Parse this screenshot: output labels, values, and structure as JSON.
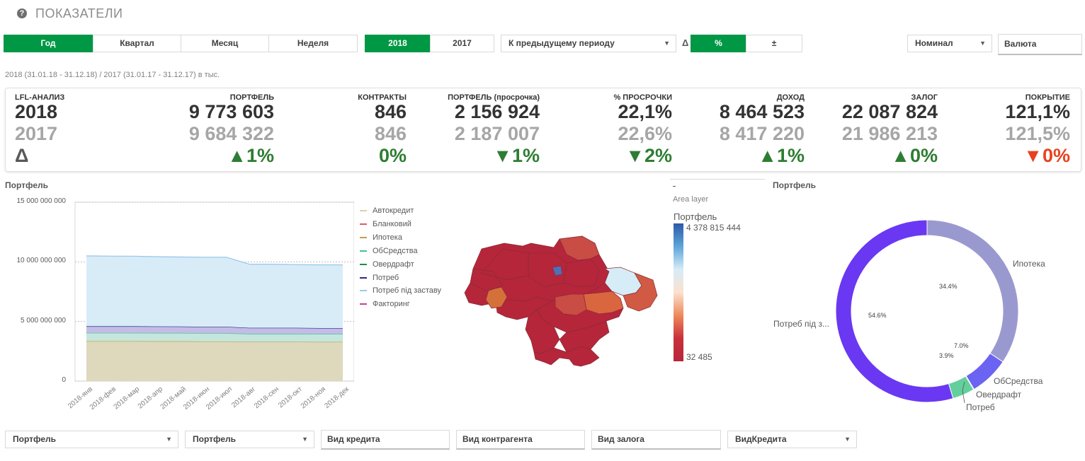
{
  "header": {
    "title": "ПОКАЗАТЕЛИ",
    "help_icon": "question-circle-icon"
  },
  "toolbar": {
    "period_tabs": [
      {
        "label": "Год",
        "selected": true
      },
      {
        "label": "Квартал",
        "selected": false
      },
      {
        "label": "Месяц",
        "selected": false
      },
      {
        "label": "Неделя",
        "selected": false
      }
    ],
    "years": [
      {
        "label": "2018",
        "selected": true
      },
      {
        "label": "2017",
        "selected": false
      }
    ],
    "comparison_dropdown": "К предыдущему периоду",
    "delta_symbol": "Δ",
    "delta_modes": [
      {
        "label": "%",
        "selected": true
      },
      {
        "label": "±",
        "selected": false
      }
    ],
    "nominal_dropdown": "Номинал",
    "currency_field": "Валюта"
  },
  "period_note": "2018 (31.01.18 - 31.12.18) / 2017 (31.01.17 - 31.12.17) в тыс.",
  "kpis": {
    "row_labels": {
      "header": "LFL-АНАЛИЗ",
      "current": "2018",
      "previous": "2017",
      "delta": "Δ"
    },
    "columns": [
      {
        "header": "ПОРТФЕЛЬ",
        "current": "9 773 603",
        "previous": "9 684 322",
        "delta": "▲1%",
        "negative": false
      },
      {
        "header": "КОНТРАКТЫ",
        "current": "846",
        "previous": "846",
        "delta": "0%",
        "negative": false
      },
      {
        "header": "ПОРТФЕЛЬ (просрочка)",
        "current": "2 156 924",
        "previous": "2 187 007",
        "delta": "▼1%",
        "negative": false
      },
      {
        "header": "% ПРОСРОЧКИ",
        "current": "22,1%",
        "previous": "22,6%",
        "delta": "▼2%",
        "negative": false
      },
      {
        "header": "ДОХОД",
        "current": "8 464 523",
        "previous": "8 417 220",
        "delta": "▲1%",
        "negative": false
      },
      {
        "header": "ЗАЛОГ",
        "current": "22 087 824",
        "previous": "21 986 213",
        "delta": "▲0%",
        "negative": false
      },
      {
        "header": "ПОКРЫТИЕ",
        "current": "121,1%",
        "previous": "121,5%",
        "delta": "▼0%",
        "negative": true
      }
    ],
    "colors": {
      "positive": "#2e7d32",
      "negative": "#e8421e",
      "previous": "#a6a6a6"
    }
  },
  "area_chart_title": "Портфель",
  "donut_title": "Портфель",
  "map": {
    "layer_label": "Area layer",
    "legend_title": "Портфель",
    "max_label": "4 378 815 444",
    "min_label": "32 485"
  },
  "chart_data": [
    {
      "type": "area",
      "title": "Портфель",
      "stacked": true,
      "x": [
        "2018-янв",
        "2018-фев",
        "2018-мар",
        "2018-апр",
        "2018-май",
        "2018-июн",
        "2018-июл",
        "2018-авг",
        "2018-сен",
        "2018-окт",
        "2018-ноя",
        "2018-дек"
      ],
      "yticks": [
        "0",
        "5 000 000 000",
        "10 000 000 000",
        "15 000 000 000"
      ],
      "ylim": [
        0,
        15000000000
      ],
      "series": [
        {
          "name": "Автокредит",
          "color": "#d9d3a8",
          "values": [
            0,
            0,
            0,
            0,
            0,
            0,
            0,
            0,
            0,
            0,
            0,
            0
          ]
        },
        {
          "name": "Бланковий",
          "color": "#e05a6b",
          "values": [
            0,
            0,
            0,
            0,
            0,
            0,
            0,
            0,
            0,
            0,
            0,
            0
          ]
        },
        {
          "name": "Ипотека",
          "color": "#b8a34a",
          "fill": "#ded9bd",
          "values": [
            3350000000,
            3350000000,
            3350000000,
            3340000000,
            3340000000,
            3330000000,
            3330000000,
            3300000000,
            3300000000,
            3300000000,
            3290000000,
            3290000000
          ]
        },
        {
          "name": "ОбСредства",
          "color": "#3fbf9e",
          "fill": "#c5e6dc",
          "values": [
            700000000,
            700000000,
            700000000,
            700000000,
            700000000,
            690000000,
            690000000,
            670000000,
            670000000,
            670000000,
            660000000,
            660000000
          ]
        },
        {
          "name": "Овердрафт",
          "color": "#1e8c4a",
          "values": [
            0,
            0,
            0,
            0,
            0,
            0,
            0,
            0,
            0,
            0,
            0,
            0
          ]
        },
        {
          "name": "Потреб",
          "color": "#2b2a8c",
          "fill": "#c3bde6",
          "values": [
            550000000,
            550000000,
            550000000,
            550000000,
            540000000,
            540000000,
            540000000,
            500000000,
            500000000,
            500000000,
            500000000,
            500000000
          ]
        },
        {
          "name": "Потреб під заставу",
          "color": "#9cc9ea",
          "fill": "#d8ecf8",
          "values": [
            5900000000,
            5880000000,
            5870000000,
            5840000000,
            5830000000,
            5830000000,
            5830000000,
            5330000000,
            5330000000,
            5300000000,
            5300000000,
            5300000000
          ]
        },
        {
          "name": "Факторинг",
          "color": "#c63f9c",
          "values": [
            0,
            0,
            0,
            0,
            0,
            0,
            0,
            0,
            0,
            0,
            0,
            0
          ]
        }
      ],
      "legend_position": "right"
    },
    {
      "type": "pie",
      "title": "Портфель",
      "donut": true,
      "slices": [
        {
          "label": "Ипотека",
          "value": 34.4,
          "pct": "34.4%",
          "color": "#9a99cf"
        },
        {
          "label": "ОбСредства",
          "value": 7.0,
          "pct": "7.0%",
          "color": "#6b63f2"
        },
        {
          "label": "Овердрафт",
          "value": 0.1,
          "pct": "",
          "color": "#2f8c5a"
        },
        {
          "label": "Потреб",
          "value": 3.9,
          "pct": "3.9%",
          "color": "#63cf9c"
        },
        {
          "label": "Потреб під з...",
          "value": 54.6,
          "pct": "54.6%",
          "color": "#6a38f2"
        }
      ]
    }
  ],
  "bottom_filters": [
    {
      "label": "Портфель",
      "type": "dropdown"
    },
    {
      "label": "Портфель",
      "type": "dropdown"
    },
    {
      "label": "Вид кредита",
      "type": "field"
    },
    {
      "label": "Вид контрагента",
      "type": "field"
    },
    {
      "label": "Вид залога",
      "type": "field"
    },
    {
      "label": "ВидКредита",
      "type": "dropdown"
    }
  ]
}
